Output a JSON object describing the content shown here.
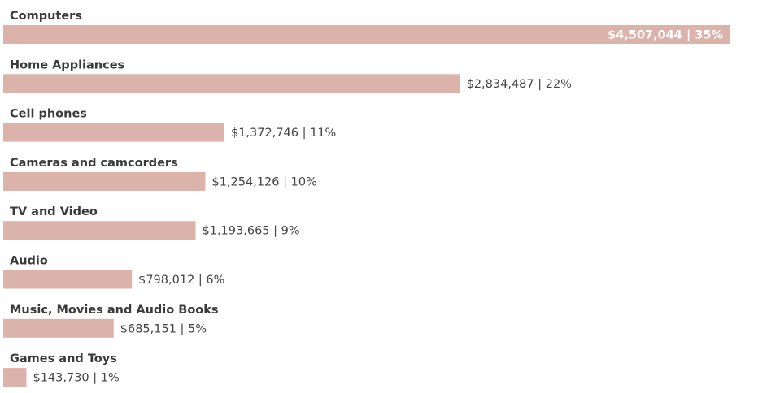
{
  "chart_data": {
    "type": "bar",
    "orientation": "horizontal",
    "categories": [
      "Computers",
      "Home Appliances",
      "Cell phones",
      "Cameras and camcorders",
      "TV and Video",
      "Audio",
      "Music, Movies and Audio Books",
      "Games and Toys"
    ],
    "values": [
      4507044,
      2834487,
      1372746,
      1254126,
      1193665,
      798012,
      685151,
      143730
    ],
    "data_labels": [
      "$4,507,044 | 35%",
      "$2,834,487 | 22%",
      "$1,372,746 | 11%",
      "$1,254,126 | 10%",
      "$1,193,665 | 9%",
      "$798,012 | 6%",
      "$685,151 | 5%",
      "$143,730 | 1%"
    ],
    "xlim": [
      0,
      4507044
    ],
    "grid": false,
    "legend": "none",
    "colors": {
      "bar": "#dbb3aa",
      "category_text": "#3a3a3a",
      "value_text": "#444444",
      "value_text_inside": "#ffffff"
    }
  }
}
